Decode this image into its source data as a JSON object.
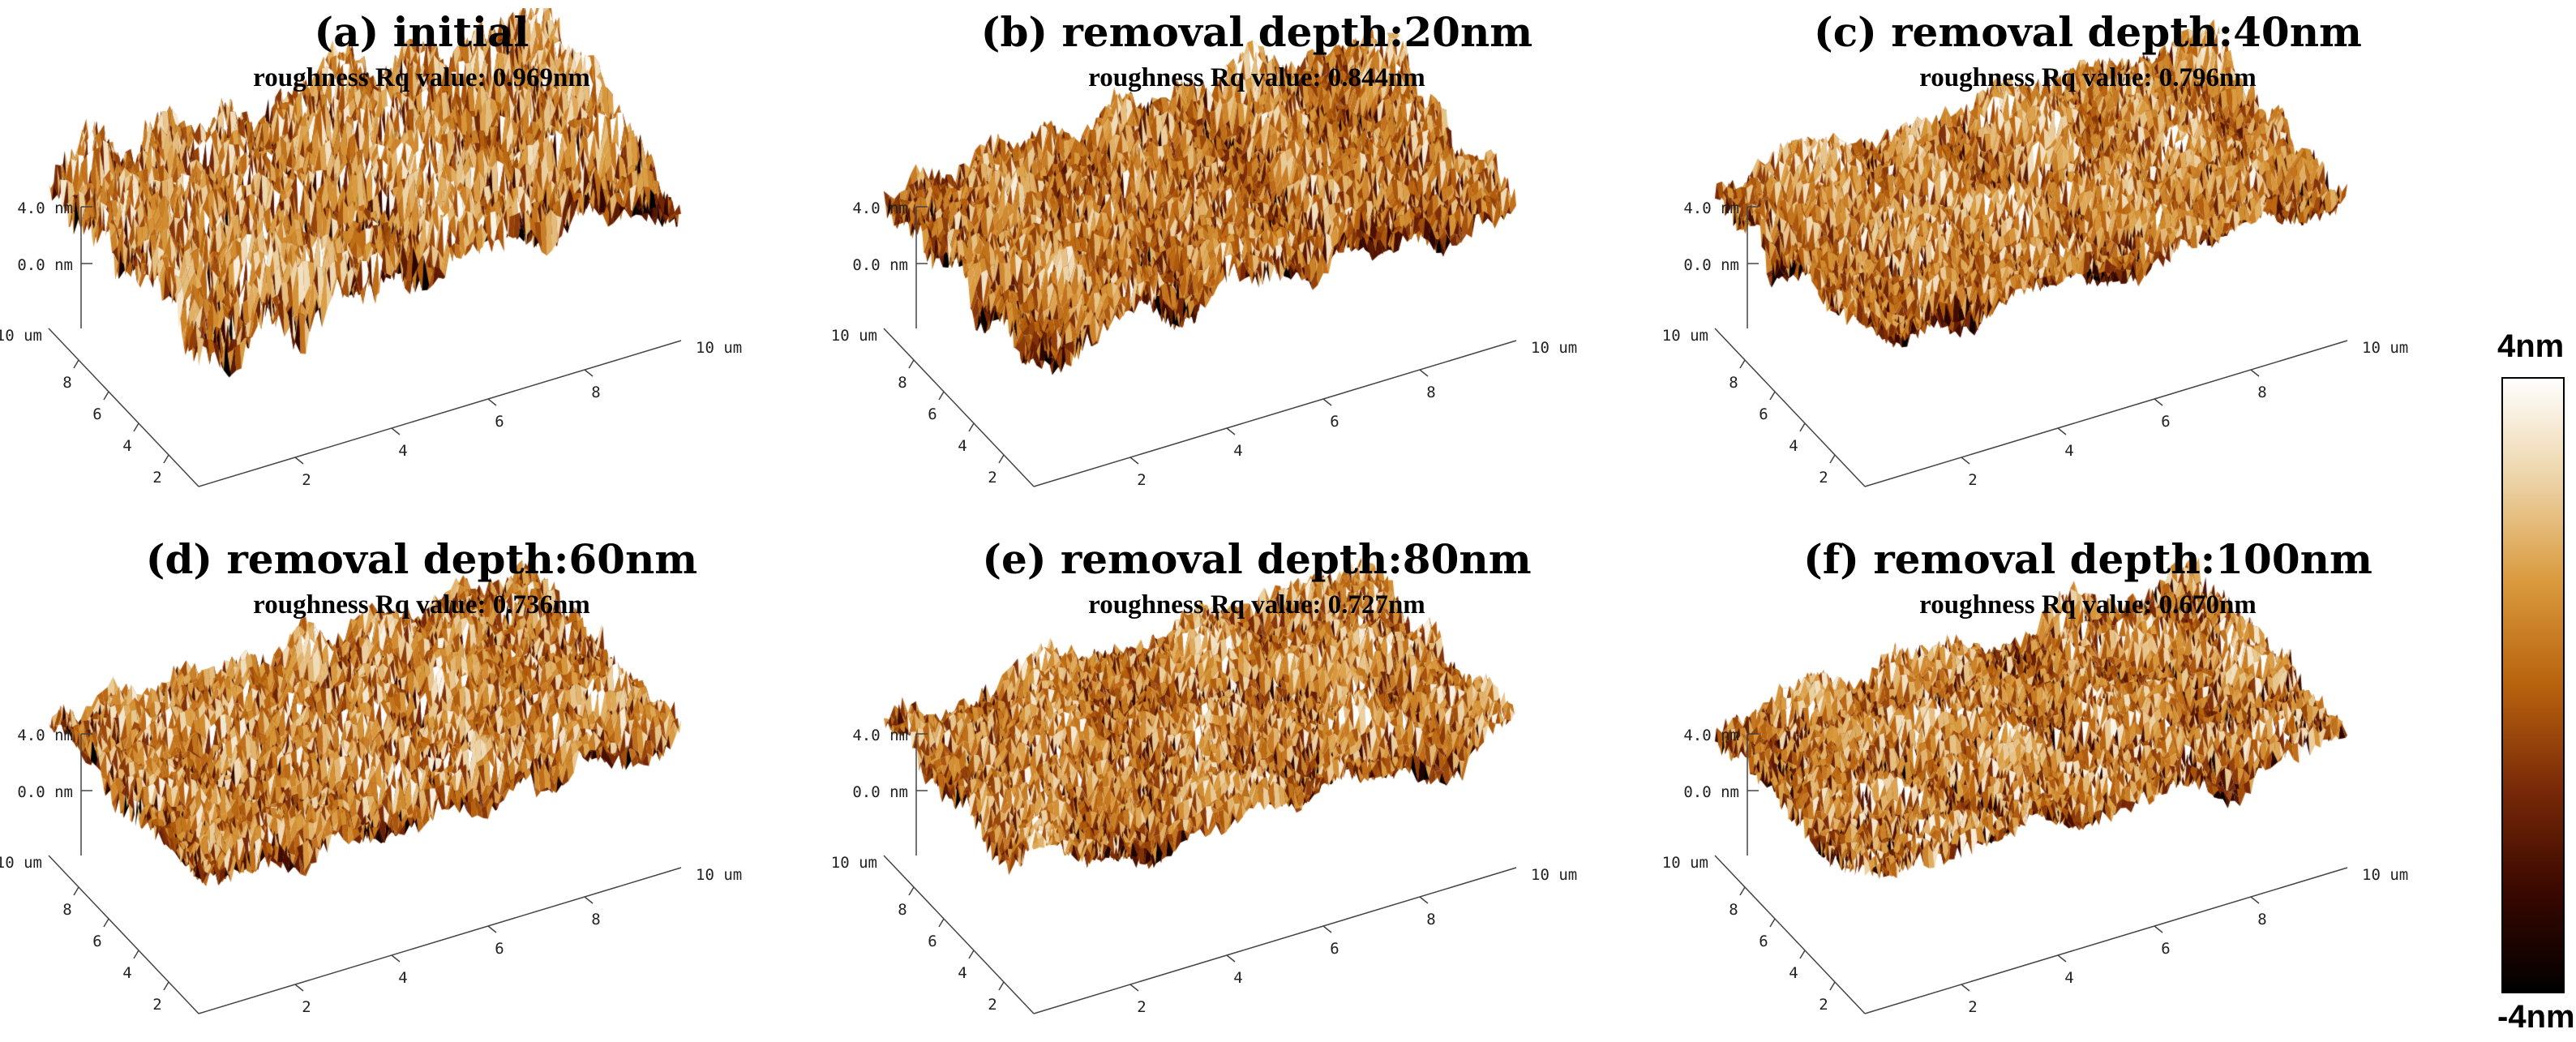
{
  "panels": [
    {
      "id": "a",
      "title": "(a) initial",
      "roughness": "roughness Rq value: 0.969nm",
      "amp": 1.0,
      "seed": 11
    },
    {
      "id": "b",
      "title": "(b) removal depth:20nm",
      "roughness": "roughness Rq value: 0.844nm",
      "amp": 0.85,
      "seed": 23
    },
    {
      "id": "c",
      "title": "(c) removal depth:40nm",
      "roughness": "roughness Rq value: 0.796nm",
      "amp": 0.8,
      "seed": 37
    },
    {
      "id": "d",
      "title": "(d) removal depth:60nm",
      "roughness": "roughness Rq value: 0.736nm",
      "amp": 0.74,
      "seed": 41
    },
    {
      "id": "e",
      "title": "(e) removal depth:80nm",
      "roughness": "roughness Rq value: 0.727nm",
      "amp": 0.72,
      "seed": 53
    },
    {
      "id": "f",
      "title": "(f) removal depth:100nm",
      "roughness": "roughness Rq value: 0.670nm",
      "amp": 0.66,
      "seed": 67
    }
  ],
  "axis": {
    "z_labels": [
      "4.0 nm",
      "0.0 nm"
    ],
    "corner_label": "10 um",
    "x_label": "10 um",
    "ticks": [
      "2",
      "4",
      "6",
      "8"
    ]
  },
  "colorbar": {
    "max_label": "4nm",
    "min_label": "-4nm",
    "colors": [
      "#000000",
      "#3a0800",
      "#7a2a08",
      "#b8620e",
      "#d9993c",
      "#ecd3a6",
      "#ffffff"
    ]
  }
}
